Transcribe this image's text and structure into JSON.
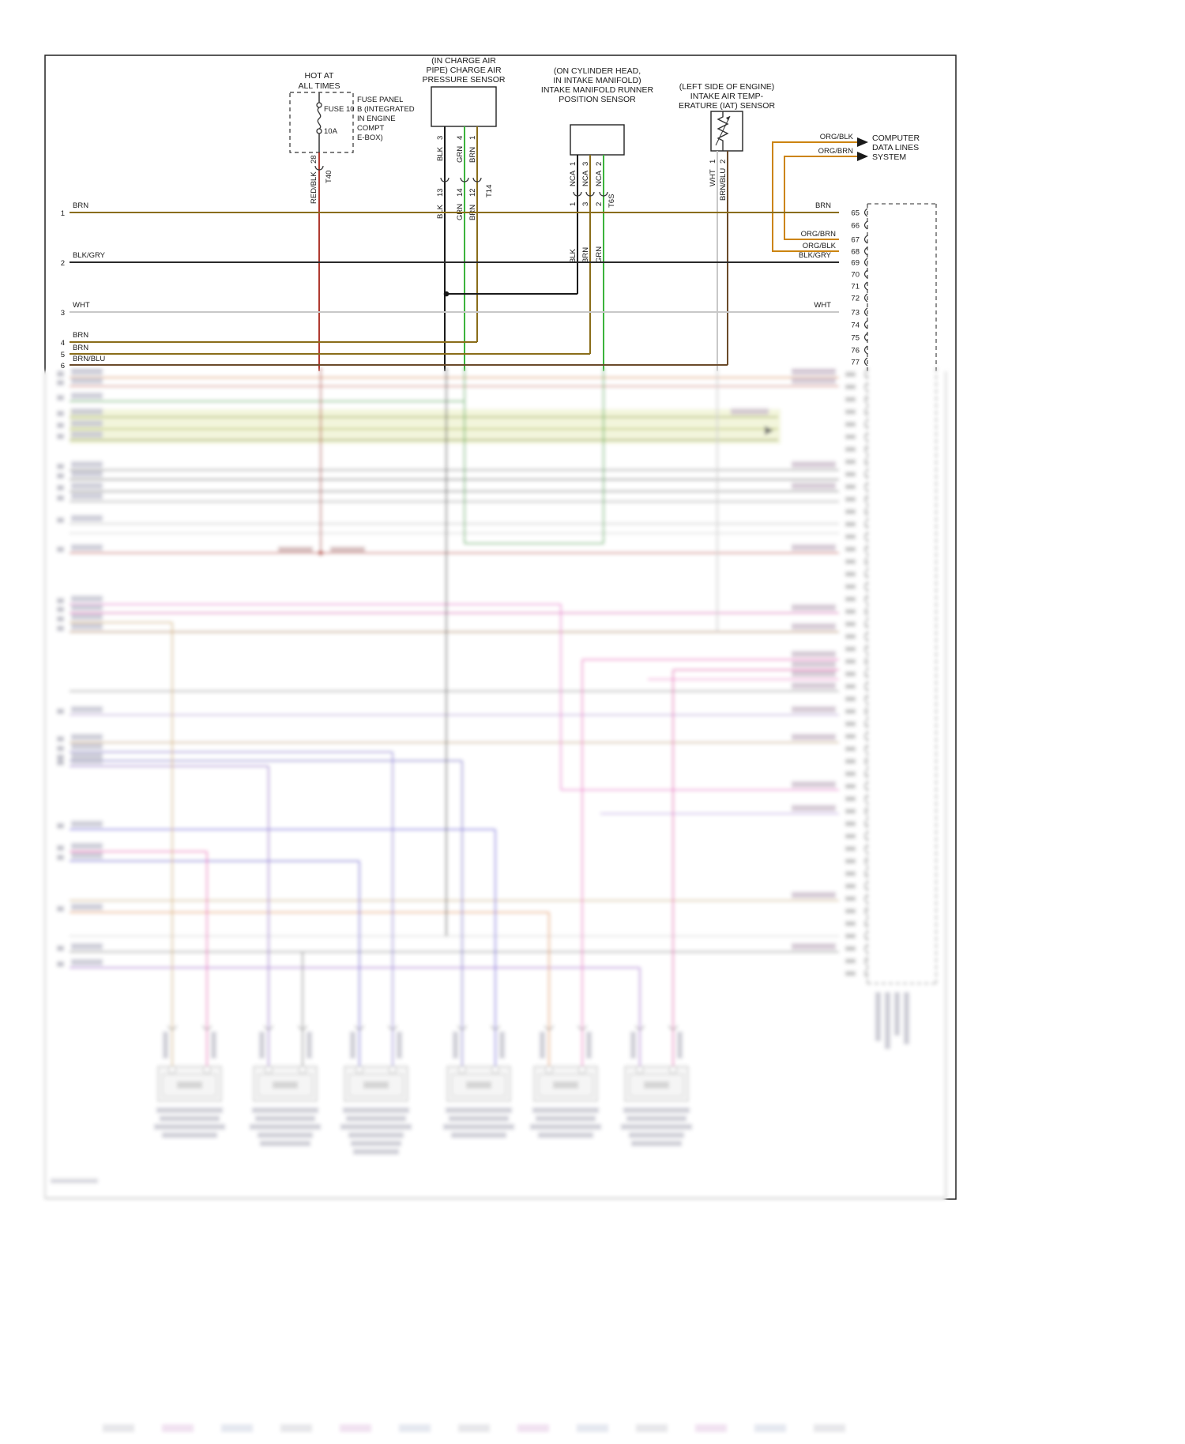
{
  "diagram": {
    "fuse": {
      "hot1": "HOT AT",
      "hot2": "ALL TIMES",
      "fuse_label": "FUSE 10",
      "amp": "10A",
      "panel": [
        "FUSE PANEL",
        "B (INTEGRATED",
        "IN ENGINE",
        "COMPT",
        "E-BOX)"
      ],
      "wire": "RED/BLK",
      "pin": "28",
      "connector": "T40"
    },
    "charge_air": {
      "caption": [
        "(IN CHARGE AIR",
        "PIPE) CHARGE AIR",
        "PRESSURE SENSOR"
      ],
      "pins": [
        {
          "color": "BLK",
          "pin": "3",
          "tpin": "13"
        },
        {
          "color": "GRN",
          "pin": "4",
          "tpin": "14"
        },
        {
          "color": "BRN",
          "pin": "1",
          "tpin": "12"
        }
      ],
      "connector": "T14"
    },
    "runner": {
      "caption": [
        "(ON CYLINDER HEAD,",
        "IN INTAKE MANIFOLD)",
        "INTAKE MANIFOLD RUNNER",
        "POSITION SENSOR"
      ],
      "pins": [
        {
          "name": "NCA",
          "pin": "1",
          "tpin": "1",
          "color": "BLK"
        },
        {
          "name": "NCA",
          "pin": "3",
          "tpin": "3",
          "color": "BRN"
        },
        {
          "name": "NCA",
          "pin": "2",
          "tpin": "2",
          "color": "GRN"
        }
      ],
      "connector": "T6S"
    },
    "iat": {
      "caption": [
        "(LEFT SIDE OF ENGINE)",
        "INTAKE AIR TEMP-",
        "ERATURE (IAT) SENSOR"
      ],
      "pins": [
        {
          "color": "WHT",
          "pin": "1"
        },
        {
          "color": "BRN/BLU",
          "pin": "2"
        }
      ]
    },
    "computer": {
      "wire_upper": "ORG/BLK",
      "wire_lower": "ORG/BRN",
      "stub_67": "ORG/BRN",
      "stub_68": "ORG/BLK",
      "dest": [
        "COMPUTER",
        "DATA LINES",
        "SYSTEM"
      ]
    },
    "left_rows": [
      {
        "num": "1",
        "label": "BRN"
      },
      {
        "num": "2",
        "label": "BLK/GRY"
      },
      {
        "num": "3",
        "label": "WHT"
      },
      {
        "num": "4",
        "label": "BRN"
      },
      {
        "num": "5",
        "label": "BRN"
      },
      {
        "num": "6",
        "label": "BRN/BLU"
      }
    ],
    "right_labels": {
      "r65": "BRN",
      "r69": "BLK/GRY",
      "r73": "WHT"
    },
    "ecm_pins": [
      "65",
      "66",
      "67",
      "68",
      "69",
      "70",
      "71",
      "72",
      "73",
      "74",
      "75",
      "76",
      "77"
    ]
  }
}
